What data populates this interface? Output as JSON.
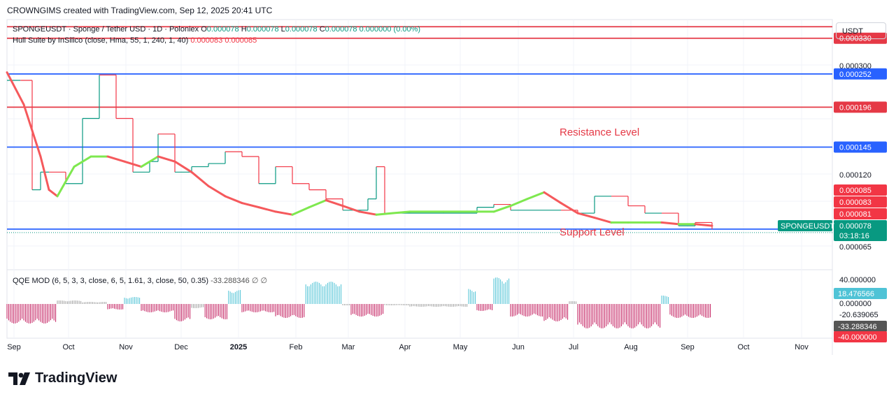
{
  "header": {
    "text": "CROWNGIMS created with TradingView.com, Sep 12, 2025 20:41 UTC"
  },
  "legend": {
    "symbol": "SPONGEUSDT · Sponge / Tether USD · 1D · Poloniex",
    "o_label": "O",
    "o": "0.000078",
    "h_label": "H",
    "h": "0.000078",
    "l_label": "L",
    "l": "0.000078",
    "c_label": "C",
    "c": "0.000078",
    "change": "0.000000 (0.00%)",
    "indicator": "Hull Suite by InSilico (close, Hma, 55, 1, 240, 1, 40)",
    "ind_v1": "0.000083",
    "ind_v2": "0.000085",
    "qqe": "QQE MOD (6, 5, 3, 3, close, 6, 5, 1.61, 3, close, 50, 0.35)",
    "qqe_val": "-33.288346",
    "qqe_sym": "∅  ∅"
  },
  "currency": "USDT",
  "logo_text": "TradingView",
  "colors": {
    "up": "#089981",
    "down": "#f23645",
    "hull_up": "#7ee84f",
    "hull_down": "#f5595c",
    "resistance": "#e53946",
    "support": "#2962ff",
    "qqe_pos": "#4fc3d6",
    "qqe_neg": "#c2185b",
    "qqe_neutral": "#9e9e9e"
  },
  "chart_data": {
    "type": "line",
    "title": "SPONGEUSDT · Sponge / Tether USD · 1D · Poloniex",
    "x_ticks": [
      "Sep",
      "Oct",
      "Nov",
      "Dec",
      "2025",
      "Feb",
      "Mar",
      "Apr",
      "May",
      "Jun",
      "Jul",
      "Aug",
      "Sep",
      "Oct",
      "Nov"
    ],
    "y_ticks": [
      "0.000300",
      "0.000120",
      "0.000065"
    ],
    "ylim": [
      5.8e-05,
      0.00038
    ],
    "y_scale": "log",
    "annotations": [
      {
        "text": "Resistance Level",
        "color": "#e53946"
      },
      {
        "text": "Support Level",
        "color": "#e53946"
      }
    ],
    "horizontal_lines": [
      {
        "value": 0.00036,
        "color": "#e53946",
        "label": ""
      },
      {
        "value": 0.00033,
        "color": "#e53946",
        "label": "0.000330"
      },
      {
        "value": 0.000252,
        "color": "#2962ff",
        "label": "0.000252"
      },
      {
        "value": 0.000196,
        "color": "#e53946",
        "label": "0.000196"
      },
      {
        "value": 0.000145,
        "color": "#2962ff",
        "label": "0.000145"
      },
      {
        "value": 7.8e-05,
        "color": "#2962ff",
        "label": ""
      }
    ],
    "price_tags": [
      {
        "value": 8.5e-05,
        "label": "0.000085",
        "color": "#f23645"
      },
      {
        "value": 8.3e-05,
        "label": "0.000083",
        "color": "#f23645"
      },
      {
        "value": 8.1e-05,
        "label": "0.000081",
        "color": "#f23645"
      },
      {
        "value": 7.8e-05,
        "label": "0.000078",
        "color": "#089981",
        "symbol": "SPONGEUSDT",
        "countdown": "03:18:16"
      }
    ],
    "price_series": [
      [
        0,
        0.00024
      ],
      [
        8,
        0.00024
      ],
      [
        15,
        0.000105
      ],
      [
        20,
        0.00012
      ],
      [
        25,
        0.00012
      ],
      [
        35,
        0.00011
      ],
      [
        45,
        0.00018
      ],
      [
        55,
        0.00025
      ],
      [
        65,
        0.00018
      ],
      [
        75,
        0.00012
      ],
      [
        85,
        0.00013
      ],
      [
        90,
        0.00016
      ],
      [
        100,
        0.00012
      ],
      [
        110,
        0.000125
      ],
      [
        120,
        0.000128
      ],
      [
        130,
        0.00014
      ],
      [
        140,
        0.000135
      ],
      [
        150,
        0.00011
      ],
      [
        160,
        0.000125
      ],
      [
        170,
        0.00011
      ],
      [
        180,
        0.000105
      ],
      [
        190,
        9.8e-05
      ],
      [
        200,
        9e-05
      ],
      [
        210,
        9e-05
      ],
      [
        215,
        9.8e-05
      ],
      [
        220,
        0.000125
      ],
      [
        225,
        8.8e-05
      ],
      [
        240,
        8.8e-05
      ],
      [
        260,
        8.8e-05
      ],
      [
        280,
        9.2e-05
      ],
      [
        290,
        9.4e-05
      ],
      [
        300,
        9e-05
      ],
      [
        320,
        9e-05
      ],
      [
        330,
        9e-05
      ],
      [
        340,
        8.8e-05
      ],
      [
        350,
        0.0001
      ],
      [
        360,
        0.0001
      ],
      [
        370,
        9.3e-05
      ],
      [
        380,
        8.8e-05
      ],
      [
        390,
        8.8e-05
      ],
      [
        400,
        8e-05
      ],
      [
        410,
        8.2e-05
      ],
      [
        420,
        7.8e-05
      ]
    ],
    "hull_series": [
      [
        0,
        0.000255
      ],
      [
        10,
        0.0002
      ],
      [
        20,
        0.000135
      ],
      [
        25,
        0.000105
      ],
      [
        30,
        0.0001
      ],
      [
        40,
        0.000125
      ],
      [
        50,
        0.000135
      ],
      [
        60,
        0.000135
      ],
      [
        70,
        0.00013
      ],
      [
        80,
        0.000125
      ],
      [
        90,
        0.000135
      ],
      [
        100,
        0.00013
      ],
      [
        110,
        0.00012
      ],
      [
        120,
        0.000108
      ],
      [
        130,
        0.0001
      ],
      [
        140,
        9.5e-05
      ],
      [
        150,
        9.2e-05
      ],
      [
        160,
        8.9e-05
      ],
      [
        170,
        8.7e-05
      ],
      [
        180,
        9.2e-05
      ],
      [
        190,
        9.7e-05
      ],
      [
        200,
        9.3e-05
      ],
      [
        210,
        8.9e-05
      ],
      [
        220,
        8.7e-05
      ],
      [
        230,
        8.8e-05
      ],
      [
        240,
        8.9e-05
      ],
      [
        260,
        8.9e-05
      ],
      [
        280,
        8.9e-05
      ],
      [
        290,
        8.9e-05
      ],
      [
        300,
        9.3e-05
      ],
      [
        310,
        9.8e-05
      ],
      [
        320,
        0.000103
      ],
      [
        330,
        9.5e-05
      ],
      [
        340,
        8.8e-05
      ],
      [
        350,
        8.5e-05
      ],
      [
        360,
        8.2e-05
      ],
      [
        370,
        8.2e-05
      ],
      [
        380,
        8.2e-05
      ],
      [
        390,
        8.2e-05
      ],
      [
        400,
        8.1e-05
      ],
      [
        410,
        8.1e-05
      ],
      [
        420,
        8e-05
      ]
    ],
    "qqe_ticks": [
      "40.000000",
      "0.000000",
      "-20.639065"
    ],
    "qqe_tags": [
      {
        "label": "18.476566",
        "color": "#4fc3d6"
      },
      {
        "label": "-33.288346",
        "color": "#555555"
      },
      {
        "label": "-40.000000",
        "color": "#f23645"
      }
    ]
  }
}
